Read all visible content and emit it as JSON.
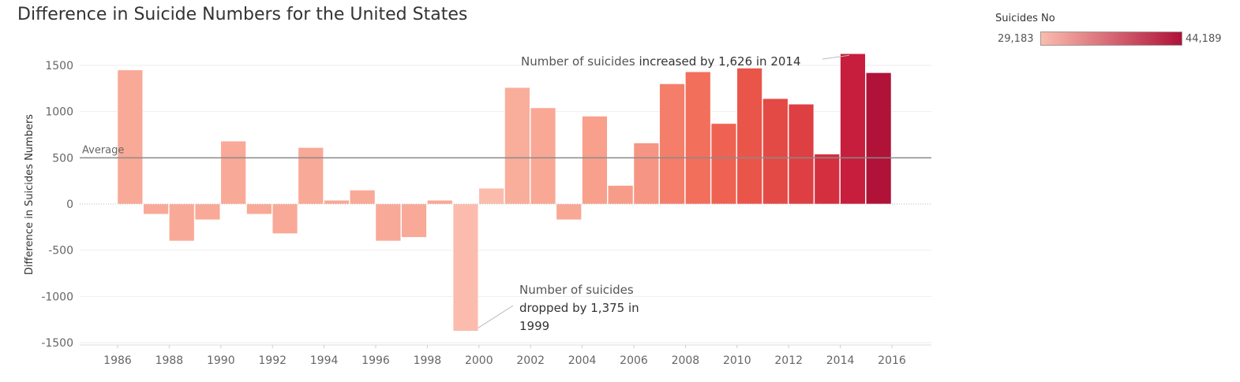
{
  "title": "Difference in Suicide Numbers for the United States",
  "legend": {
    "title": "Suicides No",
    "min_label": "29,183",
    "max_label": "44,189",
    "min_color": "#fbbcae",
    "max_color": "#b01238"
  },
  "chart_data": {
    "type": "bar",
    "title": "Difference in Suicide Numbers for the United States",
    "ylabel": "Difference in Suicides Numbers",
    "xlabel": "",
    "ylim": [
      -1580,
      1780
    ],
    "yticks": [
      1500,
      1000,
      500,
      0,
      -500,
      -1000,
      -1500
    ],
    "ytick_labels": [
      "1500",
      "1000",
      "500",
      "0",
      "-500",
      "-1000",
      "-1500"
    ],
    "xtick_labels": [
      "1986",
      "1988",
      "1990",
      "1992",
      "1994",
      "1996",
      "1998",
      "2000",
      "2002",
      "2004",
      "2006",
      "2008",
      "2010",
      "2012",
      "2014",
      "2016"
    ],
    "categories": [
      1986,
      1987,
      1988,
      1989,
      1990,
      1991,
      1992,
      1993,
      1994,
      1995,
      1996,
      1997,
      1998,
      1999,
      2000,
      2001,
      2002,
      2003,
      2004,
      2005,
      2006,
      2007,
      2008,
      2009,
      2010,
      2011,
      2012,
      2013,
      2014,
      2015
    ],
    "values": [
      1450,
      -110,
      -400,
      -170,
      680,
      -110,
      -320,
      610,
      40,
      150,
      -400,
      -360,
      40,
      -1375,
      170,
      1260,
      1040,
      -170,
      950,
      200,
      660,
      1300,
      1430,
      870,
      1470,
      1140,
      1080,
      540,
      1626,
      1420
    ],
    "colors": [
      "#f9a997",
      "#f9a997",
      "#f9a997",
      "#f9a997",
      "#f9a997",
      "#f9a997",
      "#f9a997",
      "#f9a997",
      "#f9a997",
      "#f9a997",
      "#f9a997",
      "#f9a997",
      "#f9a997",
      "#fbbcae",
      "#fbbcae",
      "#f9ad9b",
      "#f9a895",
      "#f9a895",
      "#f8a08c",
      "#f79c88",
      "#f69583",
      "#f47e6a",
      "#f26f5c",
      "#ef6252",
      "#ea5549",
      "#e44a45",
      "#de3f42",
      "#d42f3f",
      "#c61e3c",
      "#b01238"
    ],
    "average": {
      "value": 500,
      "label": "Average"
    },
    "grid": true,
    "annotations": [
      {
        "text_normal": "Number of suicides ",
        "text_bold": "increased by 1,626 in 2014",
        "year": 2014
      },
      {
        "line1": "Number of suicides",
        "line2": "dropped by 1,375 in",
        "line3": "1999",
        "year": 1999
      }
    ]
  }
}
